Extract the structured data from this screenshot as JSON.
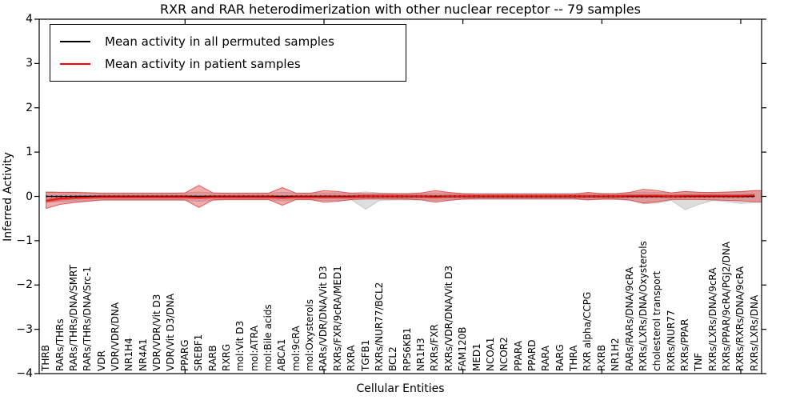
{
  "figure": {
    "title": "RXR and RAR heterodimerization with other nuclear receptor -- 79 samples",
    "xlabel": "Cellular Entities",
    "ylabel": "Inferred Activity"
  },
  "legend": {
    "items": [
      {
        "label": "Mean activity in all permuted samples",
        "color": "#000000"
      },
      {
        "label": "Mean activity in patient samples",
        "color": "#ff0000"
      }
    ]
  },
  "chart_data": {
    "type": "area",
    "title": "RXR and RAR heterodimerization with other nuclear receptor -- 79 samples",
    "xlabel": "Cellular Entities",
    "ylabel": "Inferred Activity",
    "ylim": [
      -4,
      4
    ],
    "yticks": [
      -4,
      -3,
      -2,
      -1,
      0,
      1,
      2,
      3,
      4
    ],
    "ytick_labels": [
      "−4",
      "−3",
      "−2",
      "−1",
      "0",
      "1",
      "2",
      "3",
      "4"
    ],
    "x_major_tick_indices": [
      10,
      20,
      30,
      40,
      50
    ],
    "grid": false,
    "legend_position": "upper left",
    "categories": [
      "THRB",
      "RARs/THRs",
      "RARs/THRs/DNA/SMRT",
      "RARs/THRs/DNA/Src-1",
      "VDR",
      "VDR/VDR/DNA",
      "NR1H4",
      "NR4A1",
      "VDR/VDR/Vit D3",
      "VDR/Vit D3/DNA",
      "PPARG",
      "SREBF1",
      "RARB",
      "RXRG",
      "mol:Vit D3",
      "mol:ATRA",
      "mol:Bile acids",
      "ABCA1",
      "mol:9cRA",
      "mol:Oxysterols",
      "RARs/VDR/DNA/Vit D3",
      "RXRs/FXR/9cRA/MED1",
      "RXRA",
      "TGFB1",
      "RXRs/NUR77/BCL2",
      "BCL2",
      "RPS6KB1",
      "NR1H3",
      "RXRs/FXR",
      "RXRs/VDR/DNA/Vit D3",
      "FAM120B",
      "MED1",
      "NCOA1",
      "NCOR2",
      "PPARA",
      "PPARD",
      "RARA",
      "RARG",
      "THRA",
      "RXR alpha/CCPG",
      "RXRB",
      "NR1H2",
      "RARs/RARs/DNA/9cRA",
      "RXRs/LXRs/DNA/Oxysterols",
      "cholesterol transport",
      "RXRs/NUR77",
      "RXRs/PPAR",
      "TNF",
      "RXRs/LXRs/DNA/9cRA",
      "RXRs/PPAR/9cRA/PGJ2/DNA",
      "RXRs/RXRs/DNA/9cRA",
      "RXRs/LXRs/DNA"
    ],
    "series": [
      {
        "name": "Mean activity in all permuted samples",
        "kind": "line",
        "color": "#000000",
        "values_constant": 0
      },
      {
        "name": "Mean activity in patient samples",
        "kind": "line",
        "color": "#ff0000",
        "values": [
          -0.1,
          -0.05,
          -0.03,
          -0.02,
          -0.01,
          -0.01,
          -0.01,
          -0.01,
          -0.01,
          -0.01,
          -0.01,
          -0.02,
          -0.01,
          -0.01,
          -0.01,
          -0.01,
          -0.01,
          -0.02,
          -0.01,
          -0.01,
          -0.01,
          -0.01,
          -0.01,
          0,
          0,
          0,
          0,
          0,
          -0.01,
          0,
          0,
          0,
          0,
          0,
          0,
          0,
          0,
          0,
          0,
          0,
          0,
          0,
          0.01,
          0.01,
          0.01,
          0,
          0.01,
          0.01,
          0.01,
          0.01,
          0.01,
          0.02
        ]
      },
      {
        "name": "Permuted samples activity range",
        "kind": "band",
        "color": "#878787",
        "upper": [
          0.11,
          0.1,
          0.1,
          0.09,
          0.08,
          0.08,
          0.08,
          0.08,
          0.08,
          0.08,
          0.08,
          0.1,
          0.08,
          0.08,
          0.08,
          0.08,
          0.08,
          0.09,
          0.08,
          0.08,
          0.08,
          0.08,
          0.08,
          0.1,
          0.08,
          0.07,
          0.07,
          0.07,
          0.08,
          0.08,
          0.07,
          0.07,
          0.07,
          0.07,
          0.07,
          0.07,
          0.07,
          0.07,
          0.07,
          0.08,
          0.07,
          0.07,
          0.08,
          0.1,
          0.09,
          0.08,
          0.12,
          0.1,
          0.08,
          0.09,
          0.1,
          0.13
        ],
        "lower": [
          -0.13,
          -0.12,
          -0.11,
          -0.1,
          -0.09,
          -0.09,
          -0.09,
          -0.09,
          -0.09,
          -0.09,
          -0.09,
          -0.11,
          -0.09,
          -0.08,
          -0.08,
          -0.08,
          -0.08,
          -0.1,
          -0.08,
          -0.08,
          -0.09,
          -0.09,
          -0.08,
          -0.29,
          -0.09,
          -0.08,
          -0.08,
          -0.08,
          -0.09,
          -0.08,
          -0.07,
          -0.07,
          -0.07,
          -0.07,
          -0.07,
          -0.07,
          -0.07,
          -0.07,
          -0.07,
          -0.08,
          -0.07,
          -0.07,
          -0.09,
          -0.17,
          -0.15,
          -0.09,
          -0.3,
          -0.18,
          -0.09,
          -0.12,
          -0.16,
          -0.14
        ]
      },
      {
        "name": "Patient samples activity range",
        "kind": "band",
        "color": "#dd3c3c",
        "upper": [
          0.09,
          0.09,
          0.09,
          0.08,
          0.07,
          0.07,
          0.07,
          0.07,
          0.07,
          0.07,
          0.08,
          0.25,
          0.08,
          0.07,
          0.07,
          0.07,
          0.07,
          0.2,
          0.07,
          0.07,
          0.13,
          0.11,
          0.07,
          0.06,
          0.06,
          0.06,
          0.06,
          0.08,
          0.13,
          0.09,
          0.06,
          0.05,
          0.05,
          0.05,
          0.05,
          0.05,
          0.05,
          0.05,
          0.05,
          0.09,
          0.06,
          0.06,
          0.09,
          0.16,
          0.13,
          0.08,
          0.11,
          0.09,
          0.09,
          0.1,
          0.11,
          0.13
        ],
        "lower": [
          -0.27,
          -0.18,
          -0.14,
          -0.11,
          -0.08,
          -0.08,
          -0.08,
          -0.08,
          -0.08,
          -0.08,
          -0.08,
          -0.25,
          -0.08,
          -0.07,
          -0.07,
          -0.07,
          -0.07,
          -0.2,
          -0.07,
          -0.07,
          -0.13,
          -0.11,
          -0.07,
          -0.06,
          -0.06,
          -0.06,
          -0.06,
          -0.08,
          -0.13,
          -0.09,
          -0.06,
          -0.05,
          -0.05,
          -0.05,
          -0.05,
          -0.05,
          -0.05,
          -0.05,
          -0.05,
          -0.08,
          -0.06,
          -0.06,
          -0.08,
          -0.15,
          -0.12,
          -0.07,
          -0.07,
          -0.07,
          -0.08,
          -0.09,
          -0.1,
          -0.12
        ]
      }
    ]
  }
}
